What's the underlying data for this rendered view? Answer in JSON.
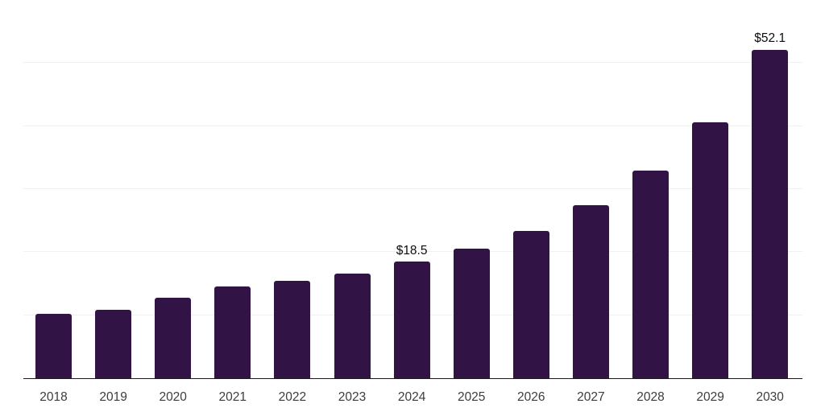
{
  "chart_data": {
    "type": "bar",
    "categories": [
      "2018",
      "2019",
      "2020",
      "2021",
      "2022",
      "2023",
      "2024",
      "2025",
      "2026",
      "2027",
      "2028",
      "2029",
      "2030"
    ],
    "values": [
      10.2,
      10.9,
      12.8,
      14.5,
      15.5,
      16.6,
      18.5,
      20.6,
      23.3,
      27.5,
      33.0,
      40.6,
      52.1
    ],
    "data_labels": [
      "",
      "",
      "",
      "",
      "",
      "",
      "$18.5",
      "",
      "",
      "",
      "",
      "",
      "$52.1"
    ],
    "title": "",
    "xlabel": "",
    "ylabel": "",
    "ylim": [
      0,
      60
    ],
    "gridline_step": 10,
    "grid": true,
    "legend": false,
    "y_tick_labels_visible": false
  },
  "colors": {
    "bar": "#311345",
    "gridline": "#f0f0f0",
    "axis_line": "#1a1a1a",
    "tick_label": "#3c3c3c",
    "data_label": "#0d0d0d",
    "background": "#ffffff"
  }
}
